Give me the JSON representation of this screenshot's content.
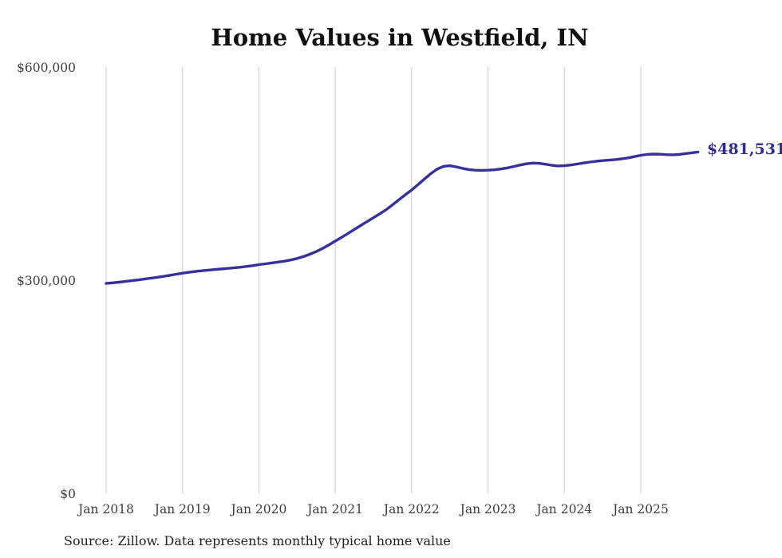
{
  "source_note": "Source: Zillow. Data represents monthly typical home value",
  "end_label": "$481,531",
  "colors": {
    "line": "#34319e",
    "end_label": "#2e2b96",
    "grid": "#cbcbcb",
    "axis_text": "#3d3d3d",
    "title_text": "#0f0f0f",
    "source_text": "#222222",
    "background": "#ffffff"
  },
  "chart_data": {
    "type": "line",
    "title": "Home Values in Westfield, IN",
    "x_tick_labels": [
      "Jan 2018",
      "Jan 2019",
      "Jan 2020",
      "Jan 2021",
      "Jan 2022",
      "Jan 2023",
      "Jan 2024",
      "Jan 2025"
    ],
    "y_ticks": [
      {
        "value": 600000,
        "label": "$600,000"
      },
      {
        "value": 300000,
        "label": "$300,000"
      },
      {
        "value": 0,
        "label": "$0"
      }
    ],
    "ylim": [
      0,
      600000
    ],
    "x_range": [
      "2018-01",
      "2025-10"
    ],
    "frequency": "monthly",
    "grid": "vertical-yearly-only",
    "legend": "none",
    "annotation": {
      "text": "$481,531",
      "value": 481531,
      "position": "end-of-line"
    },
    "series": [
      {
        "name": "Typical home value",
        "values": [
          296600,
          297400,
          298300,
          299300,
          300400,
          301500,
          302700,
          303900,
          305200,
          306500,
          308000,
          309500,
          311000,
          312300,
          313400,
          314400,
          315300,
          316100,
          316900,
          317600,
          318400,
          319300,
          320400,
          321600,
          323000,
          324200,
          325400,
          326600,
          327900,
          329500,
          331700,
          334400,
          337600,
          341300,
          345800,
          350800,
          356200,
          361500,
          367000,
          372600,
          378100,
          383600,
          389100,
          394600,
          400300,
          407200,
          414400,
          421400,
          428000,
          435600,
          443500,
          451000,
          457400,
          461300,
          462200,
          460700,
          458500,
          456900,
          456000,
          455700,
          455900,
          456500,
          457600,
          459100,
          461100,
          463100,
          464900,
          465900,
          465600,
          464400,
          462900,
          461900,
          462400,
          463300,
          464600,
          466100,
          467400,
          468500,
          469400,
          470100,
          470900,
          471900,
          473300,
          475100,
          477000,
          478100,
          478600,
          478400,
          477900,
          477600,
          478100,
          479300,
          480500,
          481531
        ]
      }
    ]
  }
}
